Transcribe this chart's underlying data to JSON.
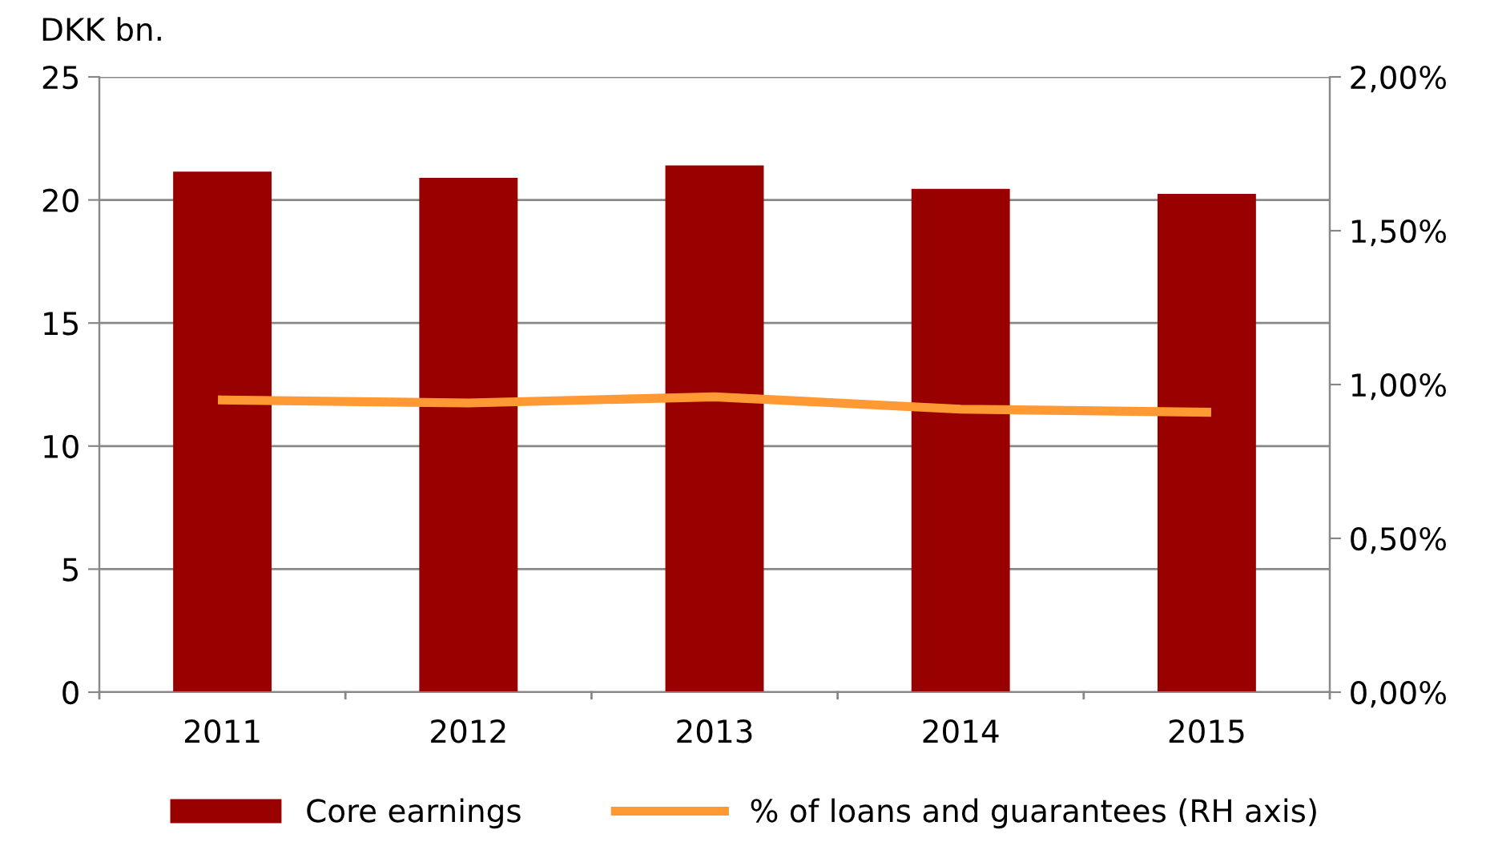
{
  "chart_data": {
    "type": "bar",
    "ylabel": "DKK bn.",
    "categories": [
      "2011",
      "2012",
      "2013",
      "2014",
      "2015"
    ],
    "series": [
      {
        "name": "Core earnings",
        "color": "#990000",
        "values": [
          21.15,
          20.9,
          21.4,
          20.45,
          20.25
        ]
      },
      {
        "name": "% of loans and guarantees (RH axis)",
        "type": "line",
        "axis": "y2",
        "color": "#ff9933",
        "values": [
          0.95,
          0.94,
          0.96,
          0.92,
          0.91
        ]
      }
    ],
    "ylim": [
      0,
      25
    ],
    "yticks": [
      0,
      5,
      10,
      15,
      20,
      25
    ],
    "y2lim": [
      0,
      2
    ],
    "y2ticks": [
      {
        "value": 0,
        "label": "0,00%"
      },
      {
        "value": 0.5,
        "label": "0,50%"
      },
      {
        "value": 1,
        "label": "1,00%"
      },
      {
        "value": 1.5,
        "label": "1,50%"
      },
      {
        "value": 2,
        "label": "2,00%"
      }
    ],
    "grid": "y",
    "legend": "bottom",
    "marker": "none",
    "line_style": "solid"
  }
}
